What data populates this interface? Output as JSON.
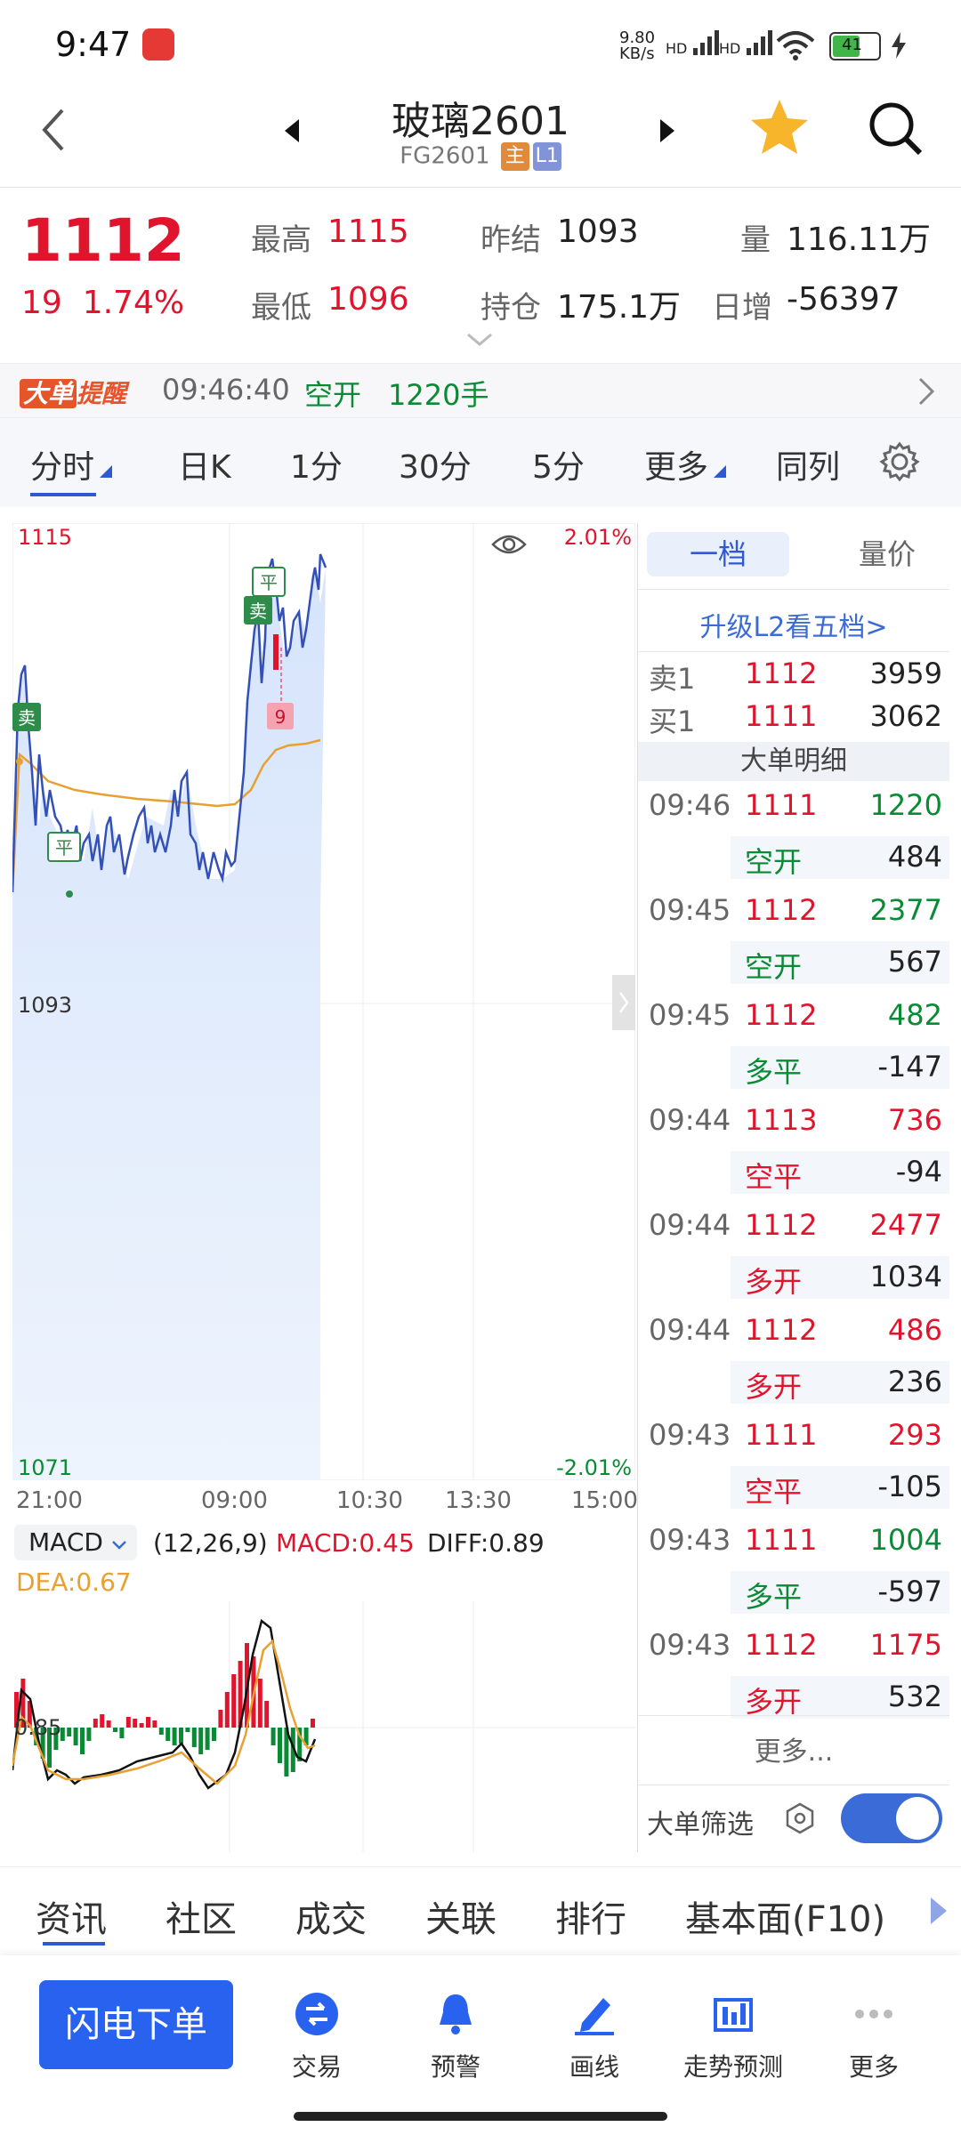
{
  "status_bar": {
    "time": "9:47",
    "net_speed": "9.80",
    "net_unit": "KB/s",
    "hd1": "HD",
    "hd2": "HD",
    "battery": "41"
  },
  "header": {
    "title": "玻璃2601",
    "code": "FG2601",
    "tag_main": "主",
    "tag_level": "L1"
  },
  "quote": {
    "price": "1112",
    "change": "19",
    "change_pct": "1.74%",
    "high_label": "最高",
    "high": "1115",
    "low_label": "最低",
    "low": "1096",
    "prev_settle_label": "昨结",
    "prev_settle": "1093",
    "open_interest_label": "持仓",
    "open_interest": "175.1万",
    "volume_label": "量",
    "volume": "116.11万",
    "daily_inc_label": "日增",
    "daily_inc": "-56397"
  },
  "alert": {
    "badge1": "大单",
    "badge2": "提醒",
    "time": "09:46:40",
    "type": "空开",
    "qty": "1220手"
  },
  "tabs": [
    "分时",
    "日K",
    "1分",
    "30分",
    "5分",
    "更多",
    "同列"
  ],
  "chart": {
    "y_top": "1115",
    "y_mid": "1093",
    "y_bot": "1071",
    "pct_top": "2.01%",
    "pct_bot": "-2.01%",
    "x_labels": [
      "21:00",
      "09:00",
      "10:30",
      "13:30",
      "15:00"
    ],
    "markers": {
      "sell": "卖",
      "close": "平",
      "sell2": "卖",
      "close2": "平",
      "count": "9"
    },
    "indicator": "MACD",
    "params": "(12,26,9)",
    "macd_label": "MACD:0.45",
    "diff_label": "DIFF:0.89",
    "dea_label": "DEA:0.67",
    "macd_axis": "0.85",
    "colors": {
      "price": "#3350b8",
      "avg": "#e8a032",
      "up": "#e0142d",
      "down": "#0a8a34"
    }
  },
  "book": {
    "tab1": "一档",
    "tab2": "量价",
    "upgrade": "升级L2看五档>",
    "ask_label": "卖1",
    "ask_price": "1112",
    "ask_vol": "3959",
    "bid_label": "买1",
    "bid_price": "1111",
    "bid_vol": "3062",
    "section": "大单明细",
    "trades": [
      {
        "time": "09:46",
        "price": "1111",
        "vol": "1220",
        "type": "空开",
        "oi": "484",
        "pc": "red",
        "vc": "green",
        "tc": "green"
      },
      {
        "time": "09:45",
        "price": "1112",
        "vol": "2377",
        "type": "空开",
        "oi": "567",
        "pc": "red",
        "vc": "green",
        "tc": "green"
      },
      {
        "time": "09:45",
        "price": "1112",
        "vol": "482",
        "type": "多平",
        "oi": "-147",
        "pc": "red",
        "vc": "green",
        "tc": "green"
      },
      {
        "time": "09:44",
        "price": "1113",
        "vol": "736",
        "type": "空平",
        "oi": "-94",
        "pc": "red",
        "vc": "red",
        "tc": "red"
      },
      {
        "time": "09:44",
        "price": "1112",
        "vol": "2477",
        "type": "多开",
        "oi": "1034",
        "pc": "red",
        "vc": "red",
        "tc": "red"
      },
      {
        "time": "09:44",
        "price": "1112",
        "vol": "486",
        "type": "多开",
        "oi": "236",
        "pc": "red",
        "vc": "red",
        "tc": "red"
      },
      {
        "time": "09:43",
        "price": "1111",
        "vol": "293",
        "type": "空平",
        "oi": "-105",
        "pc": "red",
        "vc": "red",
        "tc": "red"
      },
      {
        "time": "09:43",
        "price": "1111",
        "vol": "1004",
        "type": "多平",
        "oi": "-597",
        "pc": "red",
        "vc": "green",
        "tc": "green"
      },
      {
        "time": "09:43",
        "price": "1112",
        "vol": "1175",
        "type": "多开",
        "oi": "532",
        "pc": "red",
        "vc": "red",
        "tc": "red"
      }
    ],
    "more": "更多...",
    "filter": "大单筛选"
  },
  "bottom_tabs": [
    "资讯",
    "社区",
    "成交",
    "关联",
    "排行",
    "基本面(F10)"
  ],
  "bottom_bar": {
    "flash_order": "闪电下单",
    "trade": "交易",
    "alert": "预警",
    "draw": "画线",
    "forecast": "走势预测",
    "more": "更多"
  }
}
